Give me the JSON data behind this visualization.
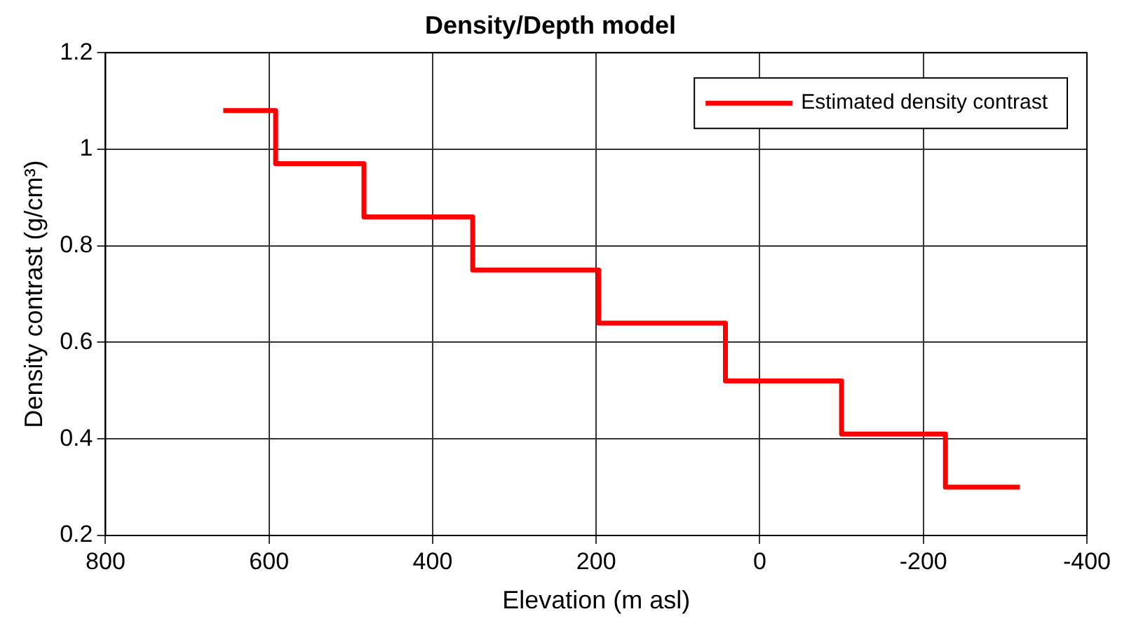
{
  "chart_data": {
    "type": "step",
    "title": "Density/Depth model",
    "xlabel": "Elevation (m asl)",
    "ylabel": "Density contrast (g/cm³)",
    "x": [
      656,
      592,
      484,
      351,
      197,
      42,
      -100,
      -227,
      -318
    ],
    "series": [
      {
        "name": "Estimated density contrast",
        "color": "#ff0000",
        "values": [
          1.08,
          0.97,
          0.86,
          0.75,
          0.64,
          0.52,
          0.41,
          0.3,
          0.3
        ]
      }
    ],
    "xlim": [
      800,
      -400
    ],
    "xticks": [
      800,
      600,
      400,
      200,
      0,
      -200,
      -400
    ],
    "ylim": [
      0.2,
      1.2
    ],
    "yticks": [
      0.2,
      0.4,
      0.6,
      0.8,
      1,
      1.2
    ],
    "grid": true,
    "legend": "top right",
    "line_style": "solid",
    "marker": "none"
  }
}
